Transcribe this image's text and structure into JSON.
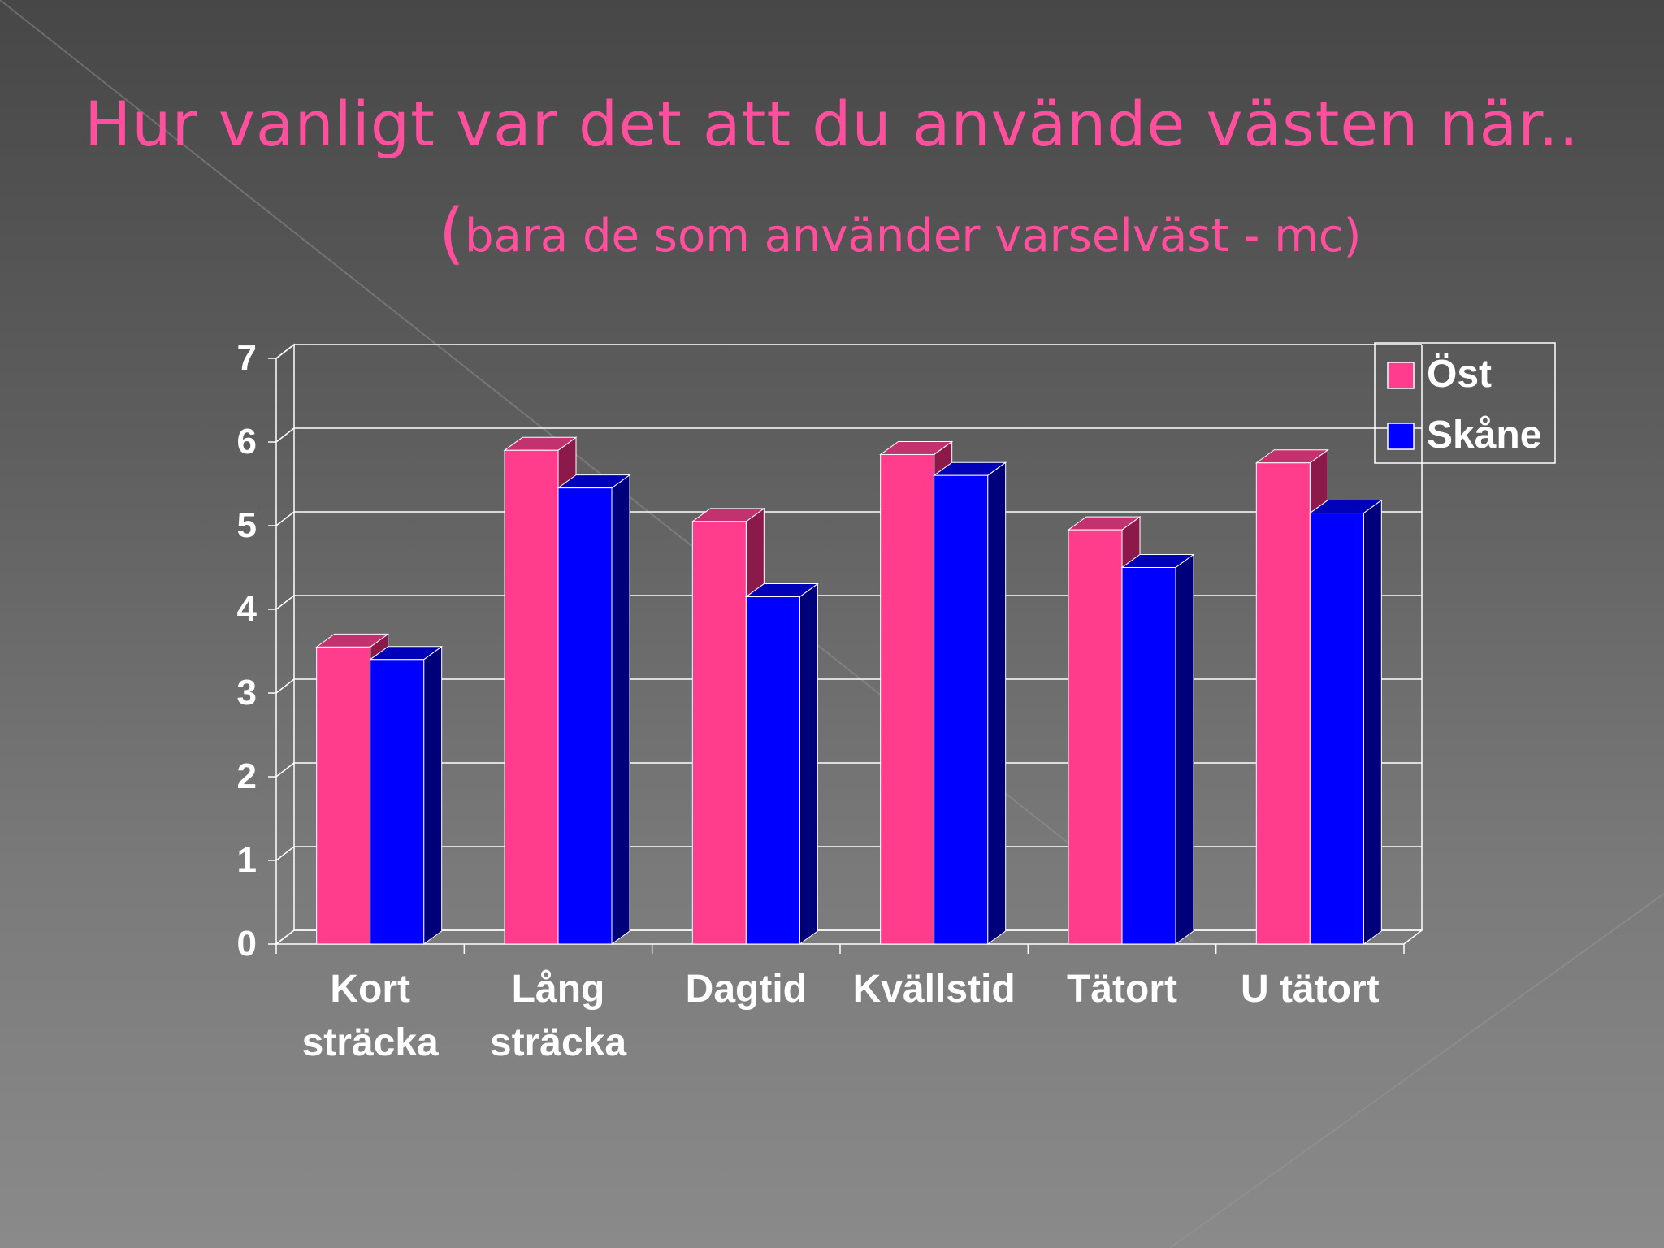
{
  "slide": {
    "title": "Hur vanligt var det att du använde västen när..",
    "subtitle_open": "(",
    "subtitle_text": "bara de som använder varselväst - mc)"
  },
  "chart_data": {
    "type": "bar",
    "style": "3d-clustered",
    "categories": [
      [
        "Kort",
        "sträcka"
      ],
      [
        "Lång",
        "sträcka"
      ],
      [
        "Dagtid"
      ],
      [
        "Kvällstid"
      ],
      [
        "Tätort"
      ],
      [
        "U tätort"
      ]
    ],
    "series": [
      {
        "name": "Öst",
        "values": [
          3.55,
          5.9,
          5.05,
          5.85,
          4.95,
          5.75
        ],
        "color": "#ff3d8c",
        "side_color": "#8b1a4a",
        "top_color": "#c2326e"
      },
      {
        "name": "Skåne",
        "values": [
          3.4,
          5.45,
          4.15,
          5.6,
          4.5,
          5.15
        ],
        "color": "#0000ff",
        "side_color": "#00007a",
        "top_color": "#0000b8"
      }
    ],
    "yticks": [
      "0",
      "1",
      "2",
      "3",
      "4",
      "5",
      "6",
      "7"
    ],
    "ylim": [
      0,
      7
    ],
    "grid": true,
    "legend": "top-right",
    "xlabel": "",
    "ylabel": ""
  }
}
